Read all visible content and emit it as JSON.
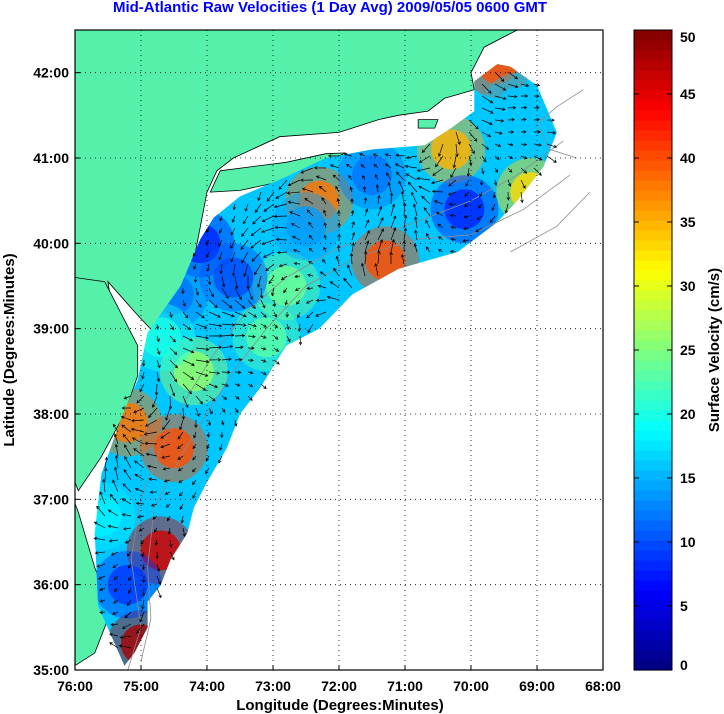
{
  "title": "Mid-Atlantic Raw Velocities (1 Day Avg) 2009/05/05 0600 GMT",
  "colors": {
    "land": "#55f0aa",
    "coast_outline": "#000000",
    "bathymetry": "#8c8c8c",
    "grid": "#000000",
    "arrow": "#000000"
  },
  "chart_data": {
    "type": "heatmap",
    "map_type": "surface current velocity field (HF radar)",
    "xlabel": "Longitude (Degrees:Minutes)",
    "ylabel": "Latitude (Degrees:Minutes)",
    "xlim_deg_west": [
      76,
      68
    ],
    "ylim_deg_north": [
      35,
      42.5
    ],
    "grid": true,
    "x_ticks": [
      {
        "value": -76,
        "label": "76:00"
      },
      {
        "value": -75,
        "label": "75:00"
      },
      {
        "value": -74,
        "label": "74:00"
      },
      {
        "value": -73,
        "label": "73:00"
      },
      {
        "value": -72,
        "label": "72:00"
      },
      {
        "value": -71,
        "label": "71:00"
      },
      {
        "value": -70,
        "label": "70:00"
      },
      {
        "value": -69,
        "label": "69:00"
      },
      {
        "value": -68,
        "label": "68:00"
      }
    ],
    "y_ticks": [
      {
        "value": 42,
        "label": "42:00"
      },
      {
        "value": 41,
        "label": "41:00"
      },
      {
        "value": 40,
        "label": "40:00"
      },
      {
        "value": 39,
        "label": "39:00"
      },
      {
        "value": 38,
        "label": "38:00"
      },
      {
        "value": 37,
        "label": "37:00"
      },
      {
        "value": 36,
        "label": "36:00"
      },
      {
        "value": 35,
        "label": "35:00"
      }
    ],
    "colorbar": {
      "label": "Surface Velocity (cm/s)",
      "min": 0,
      "max": 50,
      "ticks": [
        {
          "value": 50,
          "label": "50"
        },
        {
          "value": 45,
          "label": "45"
        },
        {
          "value": 40,
          "label": "40"
        },
        {
          "value": 35,
          "label": "35"
        },
        {
          "value": 30,
          "label": "30"
        },
        {
          "value": 25,
          "label": "25"
        },
        {
          "value": 20,
          "label": "20"
        },
        {
          "value": 15,
          "label": "15"
        },
        {
          "value": 10,
          "label": "10"
        },
        {
          "value": 5,
          "label": "5"
        },
        {
          "value": 0,
          "label": "0"
        }
      ],
      "colormap": "jet"
    },
    "velocity_hotspots": [
      {
        "lon": -75.2,
        "lat": 37.9,
        "speed": 38
      },
      {
        "lon": -74.5,
        "lat": 37.6,
        "speed": 40
      },
      {
        "lon": -74.7,
        "lat": 36.4,
        "speed": 46
      },
      {
        "lon": -75.0,
        "lat": 35.3,
        "speed": 48
      },
      {
        "lon": -71.3,
        "lat": 39.8,
        "speed": 40
      },
      {
        "lon": -72.3,
        "lat": 40.5,
        "speed": 38
      },
      {
        "lon": -69.6,
        "lat": 42.1,
        "speed": 40
      },
      {
        "lon": -69.1,
        "lat": 40.6,
        "speed": 33
      },
      {
        "lon": -70.3,
        "lat": 41.1,
        "speed": 35
      },
      {
        "lon": -73.1,
        "lat": 38.9,
        "speed": 23
      },
      {
        "lon": -72.8,
        "lat": 39.5,
        "speed": 24
      },
      {
        "lon": -74.1,
        "lat": 40.0,
        "speed": 8
      },
      {
        "lon": -73.6,
        "lat": 39.6,
        "speed": 10
      },
      {
        "lon": -74.5,
        "lat": 39.4,
        "speed": 12
      },
      {
        "lon": -72.5,
        "lat": 40.2,
        "speed": 14
      },
      {
        "lon": -71.5,
        "lat": 40.8,
        "speed": 12
      },
      {
        "lon": -70.1,
        "lat": 40.4,
        "speed": 8
      },
      {
        "lon": -69.3,
        "lat": 41.6,
        "speed": 16
      },
      {
        "lon": -75.6,
        "lat": 36.8,
        "speed": 18
      },
      {
        "lon": -75.2,
        "lat": 36.0,
        "speed": 9
      },
      {
        "lon": -74.2,
        "lat": 38.5,
        "speed": 26
      },
      {
        "lon": -74.7,
        "lat": 38.9,
        "speed": 20
      }
    ]
  }
}
